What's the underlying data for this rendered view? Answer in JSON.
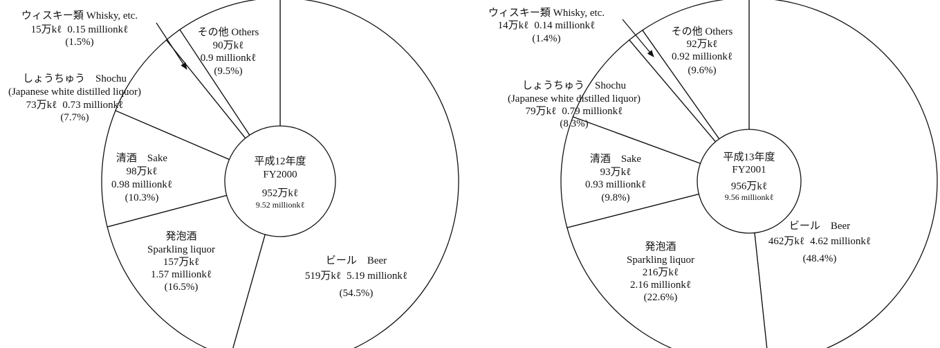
{
  "chart_data": [
    {
      "type": "pie",
      "center_title": "平成12年度",
      "center_subtitle": "FY2000",
      "total_label": "952万kℓ",
      "total_label_en": "9.52 millionkℓ",
      "categories": [
        "ビール　Beer",
        "発泡酒",
        "清酒　Sake",
        "しょうちゅう　Shochu",
        "ウィスキー類  Whisky, etc.",
        "その他  Others"
      ],
      "subnames": [
        null,
        "Sparkling liquor",
        null,
        "(Japanese white distilled liquor)",
        null,
        null
      ],
      "amounts_jp": [
        "519万kℓ",
        "157万kℓ",
        "98万kℓ",
        "73万kℓ",
        "15万kℓ",
        "90万kℓ"
      ],
      "amounts_en": [
        "5.19 millionkℓ",
        "1.57 millionkℓ",
        "0.98 millionkℓ",
        "0.73 millionkℓ",
        "0.15 millionkℓ",
        "0.9 millionkℓ"
      ],
      "values": [
        54.5,
        16.5,
        10.3,
        7.7,
        1.5,
        9.5
      ],
      "value_labels": [
        "(54.5%)",
        "(16.5%)",
        "(10.3%)",
        "(7.7%)",
        "(1.5%)",
        "(9.5%)"
      ]
    },
    {
      "type": "pie",
      "center_title": "平成13年度",
      "center_subtitle": "FY2001",
      "total_label": "956万kℓ",
      "total_label_en": "9.56 millionkℓ",
      "categories": [
        "ビール　Beer",
        "発泡酒",
        "清酒　Sake",
        "しょうちゅう　Shochu",
        "ウィスキー類  Whisky, etc.",
        "その他  Others"
      ],
      "subnames": [
        null,
        "Sparkling liquor",
        null,
        "(Japanese white distilled liquor)",
        null,
        null
      ],
      "amounts_jp": [
        "462万kℓ",
        "216万kℓ",
        "93万kℓ",
        "79万kℓ",
        "14万kℓ",
        "92万kℓ"
      ],
      "amounts_en": [
        "4.62 millionkℓ",
        "2.16 millionkℓ",
        "0.93 millionkℓ",
        "0.79 millionkℓ",
        "0.14 millionkℓ",
        "0.92 millionkℓ"
      ],
      "values": [
        48.4,
        22.6,
        9.8,
        8.3,
        1.4,
        9.6
      ],
      "value_labels": [
        "(48.4%)",
        "(22.6%)",
        "(9.8%)",
        "(8.3%)",
        "(1.4%)",
        "(9.6%)"
      ]
    }
  ]
}
